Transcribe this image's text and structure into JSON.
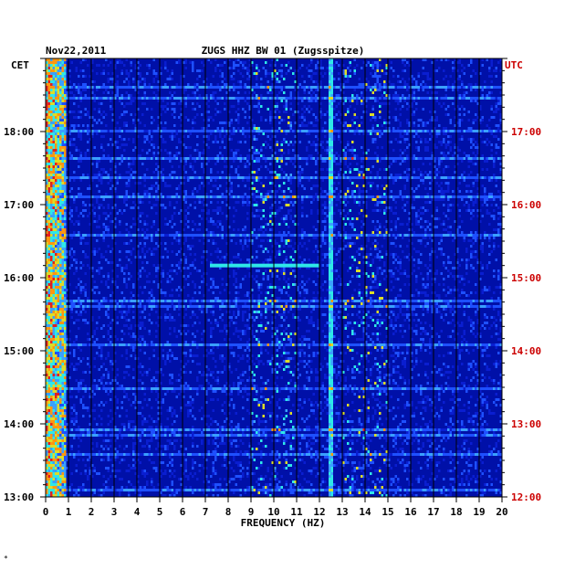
{
  "chart_data": {
    "type": "heatmap",
    "date": "Nov22,2011",
    "title": "ZUGS HHZ BW 01 (Zugsspitze)",
    "xlabel": "FREQUENCY (HZ)",
    "x_ticks": [
      "0",
      "1",
      "2",
      "3",
      "4",
      "5",
      "6",
      "7",
      "8",
      "9",
      "10",
      "11",
      "12",
      "13",
      "14",
      "15",
      "16",
      "17",
      "18",
      "19",
      "20"
    ],
    "xlim": [
      0,
      20
    ],
    "left_axis_name": "CET",
    "right_axis_name": "UTC",
    "left_ticks": [
      "18:00",
      "17:00",
      "16:00",
      "15:00",
      "14:00",
      "13:00"
    ],
    "right_ticks": [
      "17:00",
      "16:00",
      "15:00",
      "14:00",
      "13:00",
      "12:00"
    ],
    "time_range_cet": [
      "13:00",
      "19:00"
    ],
    "colormap": [
      "#0000a0",
      "#0a1ed0",
      "#1e50ff",
      "#3aa0ff",
      "#2ee8e8",
      "#dcdc28",
      "#ff9610",
      "#e02020"
    ],
    "features": [
      {
        "desc": "strong low-frequency band",
        "f_range": [
          0.1,
          0.8
        ],
        "intensity": "high"
      },
      {
        "desc": "persistent narrow line",
        "f": 12.5,
        "intensity": "medium"
      },
      {
        "desc": "broadband burst",
        "f_range": [
          7.2,
          12.0
        ],
        "time_cet": "16:10",
        "intensity": "medium"
      }
    ],
    "footer_mark": "*"
  }
}
